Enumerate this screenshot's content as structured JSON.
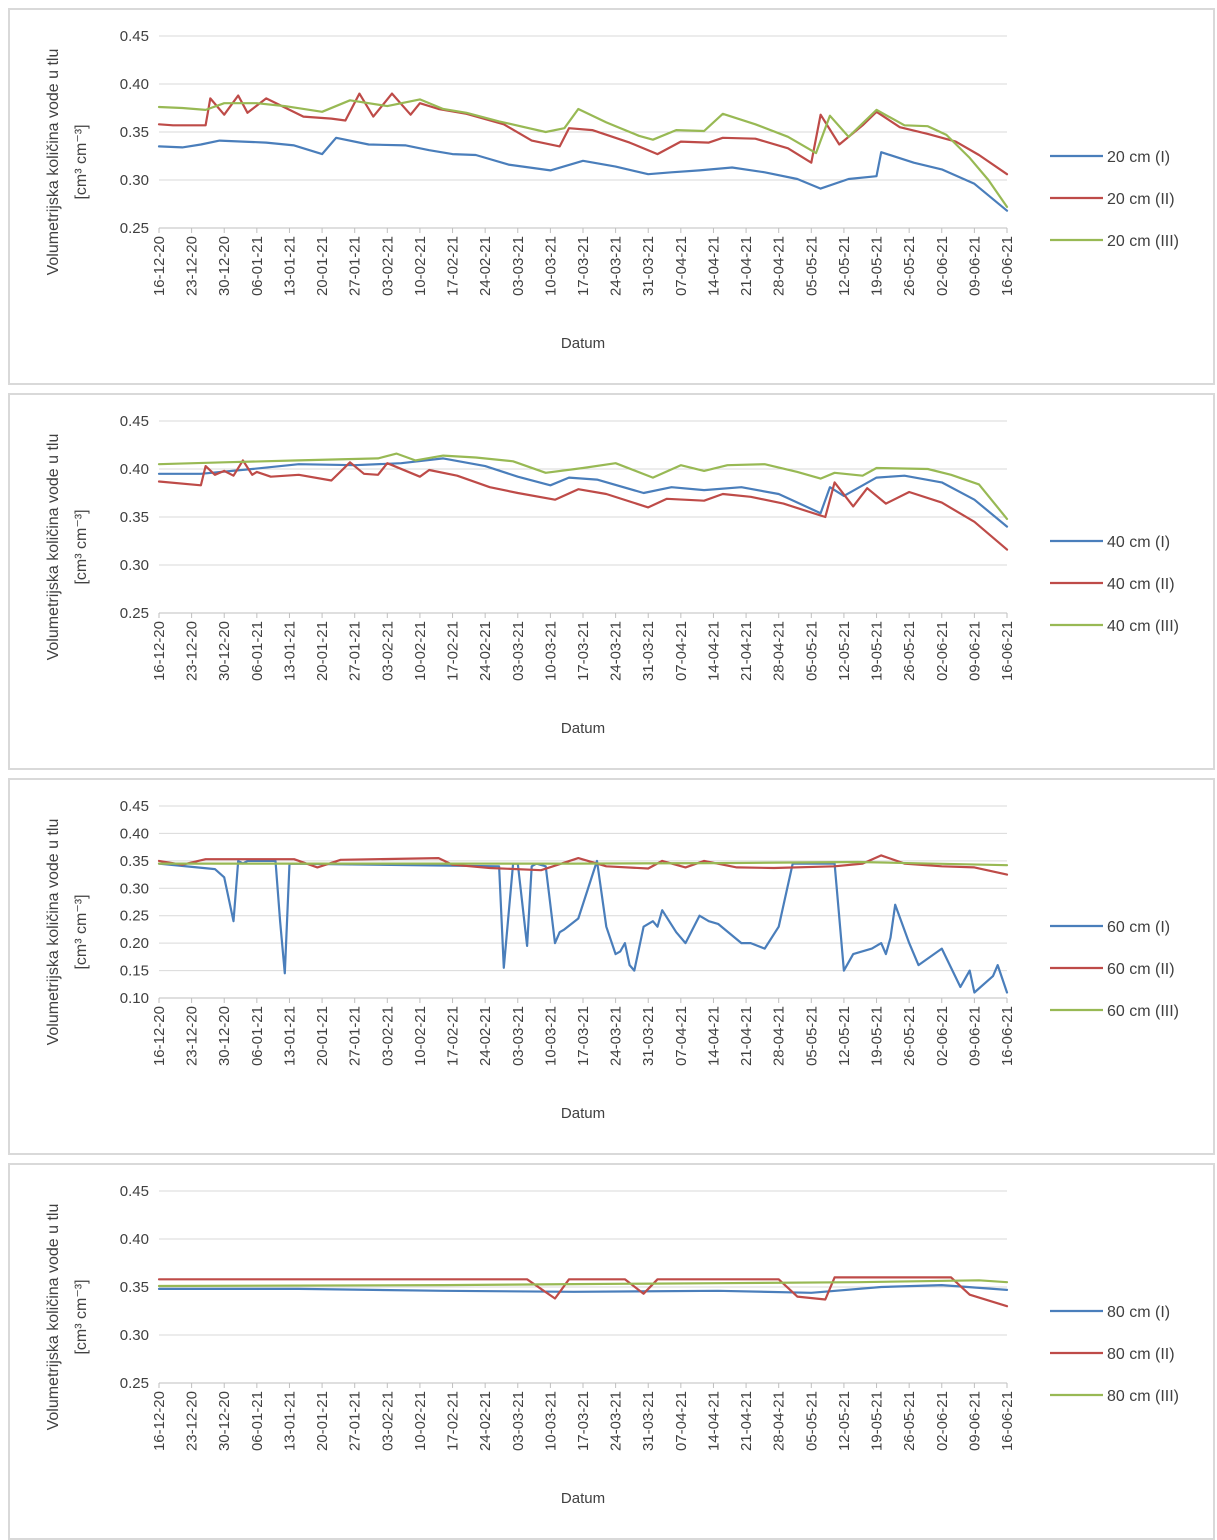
{
  "colors": {
    "series_1": "#4a7ebb",
    "series_2": "#be4b48",
    "series_3": "#98b954",
    "grid": "#d9d9d9",
    "axis": "#bfbfbf"
  },
  "chart_data": [
    {
      "type": "line",
      "ylabel_line1": "Volumetrijska količina vode u tlu",
      "ylabel_line2": "[cm³ cm⁻³]",
      "xlabel": "Datum",
      "ylim": [
        0.25,
        0.45
      ],
      "yticks": [
        "0.45",
        "0.40",
        "0.35",
        "0.30",
        "0.25"
      ],
      "x_range": [
        "2020-12-16",
        "2021-06-16"
      ],
      "x_ticks": [
        "16-12-20",
        "23-12-20",
        "30-12-20",
        "06-01-21",
        "13-01-21",
        "20-01-21",
        "27-01-21",
        "03-02-21",
        "10-02-21",
        "17-02-21",
        "24-02-21",
        "03-03-21",
        "10-03-21",
        "17-03-21",
        "24-03-21",
        "31-03-21",
        "07-04-21",
        "14-04-21",
        "21-04-21",
        "28-04-21",
        "05-05-21",
        "12-05-21",
        "19-05-21",
        "26-05-21",
        "02-06-21",
        "09-06-21",
        "16-06-21"
      ],
      "legend_position": "right",
      "series": [
        {
          "name": "20 cm (I)",
          "x": [
            "2020-12-16",
            "2020-12-21",
            "2020-12-25",
            "2020-12-29",
            "2021-01-03",
            "2021-01-08",
            "2021-01-14",
            "2021-01-20",
            "2021-01-23",
            "2021-01-30",
            "2021-02-07",
            "2021-02-12",
            "2021-02-17",
            "2021-02-22",
            "2021-03-01",
            "2021-03-10",
            "2021-03-17",
            "2021-03-24",
            "2021-03-31",
            "2021-04-05",
            "2021-04-11",
            "2021-04-18",
            "2021-04-25",
            "2021-05-02",
            "2021-05-07",
            "2021-05-13",
            "2021-05-19",
            "2021-05-20",
            "2021-05-27",
            "2021-06-02",
            "2021-06-09",
            "2021-06-16"
          ],
          "values": [
            0.335,
            0.334,
            0.337,
            0.341,
            0.34,
            0.339,
            0.336,
            0.327,
            0.344,
            0.337,
            0.336,
            0.331,
            0.327,
            0.326,
            0.316,
            0.31,
            0.32,
            0.314,
            0.306,
            0.308,
            0.31,
            0.313,
            0.308,
            0.301,
            0.291,
            0.301,
            0.304,
            0.329,
            0.318,
            0.311,
            0.296,
            0.268
          ]
        },
        {
          "name": "20 cm (II)",
          "x": [
            "2020-12-16",
            "2020-12-19",
            "2020-12-26",
            "2020-12-27",
            "2020-12-30",
            "2021-01-02",
            "2021-01-04",
            "2021-01-08",
            "2021-01-16",
            "2021-01-22",
            "2021-01-25",
            "2021-01-28",
            "2021-01-31",
            "2021-02-04",
            "2021-02-08",
            "2021-02-10",
            "2021-02-14",
            "2021-02-20",
            "2021-02-28",
            "2021-03-06",
            "2021-03-12",
            "2021-03-14",
            "2021-03-19",
            "2021-03-27",
            "2021-04-02",
            "2021-04-07",
            "2021-04-13",
            "2021-04-16",
            "2021-04-23",
            "2021-04-30",
            "2021-05-05",
            "2021-05-07",
            "2021-05-11",
            "2021-05-16",
            "2021-05-19",
            "2021-05-24",
            "2021-05-30",
            "2021-06-05",
            "2021-06-10",
            "2021-06-16"
          ],
          "values": [
            0.358,
            0.357,
            0.357,
            0.385,
            0.368,
            0.388,
            0.37,
            0.385,
            0.366,
            0.364,
            0.362,
            0.39,
            0.366,
            0.39,
            0.368,
            0.38,
            0.374,
            0.369,
            0.358,
            0.341,
            0.335,
            0.354,
            0.352,
            0.339,
            0.327,
            0.34,
            0.339,
            0.344,
            0.343,
            0.333,
            0.318,
            0.368,
            0.337,
            0.357,
            0.371,
            0.355,
            0.348,
            0.34,
            0.326,
            0.306
          ]
        },
        {
          "name": "20 cm (III)",
          "x": [
            "2020-12-16",
            "2020-12-21",
            "2020-12-26",
            "2020-12-30",
            "2021-01-06",
            "2021-01-12",
            "2021-01-20",
            "2021-01-26",
            "2021-02-03",
            "2021-02-10",
            "2021-02-15",
            "2021-02-20",
            "2021-02-27",
            "2021-03-09",
            "2021-03-13",
            "2021-03-16",
            "2021-03-22",
            "2021-03-29",
            "2021-04-01",
            "2021-04-06",
            "2021-04-12",
            "2021-04-16",
            "2021-04-23",
            "2021-04-30",
            "2021-05-06",
            "2021-05-09",
            "2021-05-13",
            "2021-05-19",
            "2021-05-25",
            "2021-05-30",
            "2021-06-03",
            "2021-06-08",
            "2021-06-12",
            "2021-06-16"
          ],
          "values": [
            0.376,
            0.375,
            0.373,
            0.38,
            0.38,
            0.377,
            0.371,
            0.383,
            0.377,
            0.384,
            0.374,
            0.37,
            0.361,
            0.35,
            0.354,
            0.374,
            0.36,
            0.346,
            0.342,
            0.352,
            0.351,
            0.369,
            0.358,
            0.345,
            0.328,
            0.367,
            0.345,
            0.373,
            0.357,
            0.356,
            0.347,
            0.323,
            0.3,
            0.272
          ]
        }
      ]
    },
    {
      "type": "line",
      "ylabel_line1": "Volumetrijska količina vode u tlu",
      "ylabel_line2": "[cm³ cm⁻³]",
      "xlabel": "Datum",
      "ylim": [
        0.25,
        0.45
      ],
      "yticks": [
        "0.45",
        "0.40",
        "0.35",
        "0.30",
        "0.25"
      ],
      "x_range": [
        "2020-12-16",
        "2021-06-16"
      ],
      "x_ticks": [
        "16-12-20",
        "23-12-20",
        "30-12-20",
        "06-01-21",
        "13-01-21",
        "20-01-21",
        "27-01-21",
        "03-02-21",
        "10-02-21",
        "17-02-21",
        "24-02-21",
        "03-03-21",
        "10-03-21",
        "17-03-21",
        "24-03-21",
        "31-03-21",
        "07-04-21",
        "14-04-21",
        "21-04-21",
        "28-04-21",
        "05-05-21",
        "12-05-21",
        "19-05-21",
        "26-05-21",
        "02-06-21",
        "09-06-21",
        "16-06-21"
      ],
      "legend_position": "right",
      "series": [
        {
          "name": "40 cm (I)",
          "x": [
            "2020-12-16",
            "2020-12-25",
            "2021-01-05",
            "2021-01-15",
            "2021-01-27",
            "2021-02-06",
            "2021-02-15",
            "2021-02-24",
            "2021-03-03",
            "2021-03-10",
            "2021-03-14",
            "2021-03-20",
            "2021-03-30",
            "2021-04-05",
            "2021-04-12",
            "2021-04-20",
            "2021-04-28",
            "2021-05-07",
            "2021-05-09",
            "2021-05-12",
            "2021-05-19",
            "2021-05-25",
            "2021-06-02",
            "2021-06-09",
            "2021-06-16"
          ],
          "values": [
            0.395,
            0.395,
            0.4,
            0.405,
            0.404,
            0.406,
            0.411,
            0.403,
            0.392,
            0.383,
            0.391,
            0.389,
            0.375,
            0.381,
            0.378,
            0.381,
            0.374,
            0.354,
            0.381,
            0.372,
            0.391,
            0.393,
            0.386,
            0.368,
            0.34
          ]
        },
        {
          "name": "40 cm (II)",
          "x": [
            "2020-12-16",
            "2020-12-25",
            "2020-12-26",
            "2020-12-28",
            "2020-12-30",
            "2021-01-01",
            "2021-01-03",
            "2021-01-05",
            "2021-01-06",
            "2021-01-09",
            "2021-01-15",
            "2021-01-22",
            "2021-01-26",
            "2021-01-29",
            "2021-02-01",
            "2021-02-03",
            "2021-02-10",
            "2021-02-12",
            "2021-02-18",
            "2021-02-25",
            "2021-03-03",
            "2021-03-11",
            "2021-03-16",
            "2021-03-22",
            "2021-03-31",
            "2021-04-04",
            "2021-04-12",
            "2021-04-16",
            "2021-04-22",
            "2021-04-29",
            "2021-05-08",
            "2021-05-10",
            "2021-05-14",
            "2021-05-17",
            "2021-05-21",
            "2021-05-26",
            "2021-06-02",
            "2021-06-09",
            "2021-06-16"
          ],
          "values": [
            0.387,
            0.383,
            0.403,
            0.394,
            0.398,
            0.393,
            0.409,
            0.394,
            0.397,
            0.392,
            0.394,
            0.388,
            0.407,
            0.395,
            0.394,
            0.406,
            0.392,
            0.399,
            0.393,
            0.381,
            0.375,
            0.368,
            0.379,
            0.374,
            0.36,
            0.369,
            0.367,
            0.374,
            0.371,
            0.364,
            0.35,
            0.386,
            0.361,
            0.38,
            0.364,
            0.376,
            0.365,
            0.345,
            0.316
          ]
        },
        {
          "name": "40 cm (III)",
          "x": [
            "2020-12-16",
            "2020-12-30",
            "2021-01-15",
            "2021-02-01",
            "2021-02-05",
            "2021-02-09",
            "2021-02-15",
            "2021-02-22",
            "2021-03-02",
            "2021-03-09",
            "2021-03-17",
            "2021-03-24",
            "2021-04-01",
            "2021-04-07",
            "2021-04-12",
            "2021-04-17",
            "2021-04-25",
            "2021-05-02",
            "2021-05-07",
            "2021-05-10",
            "2021-05-16",
            "2021-05-19",
            "2021-05-30",
            "2021-06-04",
            "2021-06-10",
            "2021-06-16"
          ],
          "values": [
            0.405,
            0.407,
            0.409,
            0.411,
            0.416,
            0.409,
            0.414,
            0.412,
            0.408,
            0.396,
            0.401,
            0.406,
            0.391,
            0.404,
            0.398,
            0.404,
            0.405,
            0.397,
            0.39,
            0.396,
            0.393,
            0.401,
            0.4,
            0.394,
            0.384,
            0.348
          ]
        }
      ]
    },
    {
      "type": "line",
      "ylabel_line1": "Volumetrijska količina vode u tlu",
      "ylabel_line2": "[cm³ cm⁻³]",
      "xlabel": "Datum",
      "ylim": [
        0.1,
        0.45
      ],
      "yticks": [
        "0.45",
        "0.40",
        "0.35",
        "0.30",
        "0.25",
        "0.20",
        "0.15",
        "0.10"
      ],
      "x_range": [
        "2020-12-16",
        "2021-06-16"
      ],
      "x_ticks": [
        "16-12-20",
        "23-12-20",
        "30-12-20",
        "06-01-21",
        "13-01-21",
        "20-01-21",
        "27-01-21",
        "03-02-21",
        "10-02-21",
        "17-02-21",
        "24-02-21",
        "03-03-21",
        "10-03-21",
        "17-03-21",
        "24-03-21",
        "31-03-21",
        "07-04-21",
        "14-04-21",
        "21-04-21",
        "28-04-21",
        "05-05-21",
        "12-05-21",
        "19-05-21",
        "26-05-21",
        "02-06-21",
        "09-06-21",
        "16-06-21"
      ],
      "legend_position": "right",
      "series": [
        {
          "name": "60 cm (I)",
          "x": [
            "2020-12-16",
            "2020-12-28",
            "2020-12-30",
            "2021-01-01",
            "2021-01-02",
            "2021-01-03",
            "2021-01-04",
            "2021-01-10",
            "2021-01-11",
            "2021-01-12",
            "2021-01-13",
            "2021-02-27",
            "2021-02-28",
            "2021-03-02",
            "2021-03-03",
            "2021-03-05",
            "2021-03-06",
            "2021-03-07",
            "2021-03-09",
            "2021-03-11",
            "2021-03-12",
            "2021-03-13",
            "2021-03-16",
            "2021-03-20",
            "2021-03-22",
            "2021-03-24",
            "2021-03-25",
            "2021-03-26",
            "2021-03-27",
            "2021-03-28",
            "2021-03-30",
            "2021-04-01",
            "2021-04-02",
            "2021-04-03",
            "2021-04-06",
            "2021-04-08",
            "2021-04-11",
            "2021-04-13",
            "2021-04-15",
            "2021-04-20",
            "2021-04-22",
            "2021-04-25",
            "2021-04-28",
            "2021-05-01",
            "2021-05-10",
            "2021-05-12",
            "2021-05-14",
            "2021-05-18",
            "2021-05-20",
            "2021-05-21",
            "2021-05-22",
            "2021-05-23",
            "2021-05-26",
            "2021-05-28",
            "2021-06-02",
            "2021-06-06",
            "2021-06-08",
            "2021-06-09",
            "2021-06-13",
            "2021-06-14",
            "2021-06-16"
          ],
          "values": [
            0.345,
            0.335,
            0.32,
            0.24,
            0.35,
            0.345,
            0.35,
            0.35,
            0.24,
            0.145,
            0.345,
            0.34,
            0.155,
            0.345,
            0.345,
            0.195,
            0.34,
            0.345,
            0.34,
            0.2,
            0.22,
            0.225,
            0.245,
            0.35,
            0.23,
            0.18,
            0.185,
            0.2,
            0.16,
            0.15,
            0.23,
            0.24,
            0.23,
            0.26,
            0.22,
            0.2,
            0.25,
            0.24,
            0.235,
            0.2,
            0.2,
            0.19,
            0.23,
            0.345,
            0.345,
            0.15,
            0.18,
            0.19,
            0.2,
            0.18,
            0.21,
            0.27,
            0.2,
            0.16,
            0.19,
            0.12,
            0.15,
            0.11,
            0.14,
            0.16,
            0.11
          ]
        },
        {
          "name": "60 cm (II)",
          "x": [
            "2020-12-16",
            "2020-12-21",
            "2020-12-26",
            "2021-01-14",
            "2021-01-19",
            "2021-01-24",
            "2021-02-14",
            "2021-02-17",
            "2021-02-25",
            "2021-03-08",
            "2021-03-16",
            "2021-03-22",
            "2021-03-31",
            "2021-04-03",
            "2021-04-08",
            "2021-04-12",
            "2021-04-19",
            "2021-04-27",
            "2021-05-10",
            "2021-05-16",
            "2021-05-20",
            "2021-05-25",
            "2021-06-02",
            "2021-06-09",
            "2021-06-16"
          ],
          "values": [
            0.35,
            0.343,
            0.353,
            0.353,
            0.338,
            0.352,
            0.355,
            0.343,
            0.337,
            0.333,
            0.355,
            0.34,
            0.336,
            0.35,
            0.338,
            0.35,
            0.338,
            0.337,
            0.34,
            0.345,
            0.36,
            0.345,
            0.34,
            0.338,
            0.325
          ]
        },
        {
          "name": "60 cm (III)",
          "x": [
            "2020-12-16",
            "2021-01-15",
            "2021-02-15",
            "2021-03-15",
            "2021-04-15",
            "2021-05-15",
            "2021-06-16"
          ],
          "values": [
            0.345,
            0.345,
            0.345,
            0.345,
            0.346,
            0.348,
            0.342
          ]
        }
      ]
    },
    {
      "type": "line",
      "ylabel_line1": "Volumetrijska količina vode u tlu",
      "ylabel_line2": "[cm³ cm⁻³]",
      "xlabel": "Datum",
      "ylim": [
        0.25,
        0.45
      ],
      "yticks": [
        "0.45",
        "0.40",
        "0.35",
        "0.30",
        "0.25"
      ],
      "x_range": [
        "2020-12-16",
        "2021-06-16"
      ],
      "x_ticks": [
        "16-12-20",
        "23-12-20",
        "30-12-20",
        "06-01-21",
        "13-01-21",
        "20-01-21",
        "27-01-21",
        "03-02-21",
        "10-02-21",
        "17-02-21",
        "24-02-21",
        "03-03-21",
        "10-03-21",
        "17-03-21",
        "24-03-21",
        "31-03-21",
        "07-04-21",
        "14-04-21",
        "21-04-21",
        "28-04-21",
        "05-05-21",
        "12-05-21",
        "19-05-21",
        "26-05-21",
        "02-06-21",
        "09-06-21",
        "16-06-21"
      ],
      "legend_position": "right",
      "series": [
        {
          "name": "80 cm (I)",
          "x": [
            "2020-12-16",
            "2021-01-15",
            "2021-02-15",
            "2021-03-15",
            "2021-04-15",
            "2021-05-05",
            "2021-05-20",
            "2021-06-02",
            "2021-06-16"
          ],
          "values": [
            0.348,
            0.348,
            0.346,
            0.345,
            0.346,
            0.344,
            0.35,
            0.352,
            0.347
          ]
        },
        {
          "name": "80 cm (II)",
          "x": [
            "2020-12-16",
            "2021-01-20",
            "2021-03-05",
            "2021-03-11",
            "2021-03-14",
            "2021-03-26",
            "2021-03-30",
            "2021-04-02",
            "2021-04-28",
            "2021-05-02",
            "2021-05-08",
            "2021-05-10",
            "2021-06-04",
            "2021-06-08",
            "2021-06-16"
          ],
          "values": [
            0.358,
            0.358,
            0.358,
            0.338,
            0.358,
            0.358,
            0.343,
            0.358,
            0.358,
            0.34,
            0.337,
            0.36,
            0.36,
            0.342,
            0.33
          ]
        },
        {
          "name": "80 cm (III)",
          "x": [
            "2020-12-16",
            "2021-02-15",
            "2021-03-15",
            "2021-04-15",
            "2021-05-15",
            "2021-06-10",
            "2021-06-16"
          ],
          "values": [
            0.351,
            0.352,
            0.353,
            0.354,
            0.355,
            0.357,
            0.355
          ]
        }
      ]
    }
  ]
}
